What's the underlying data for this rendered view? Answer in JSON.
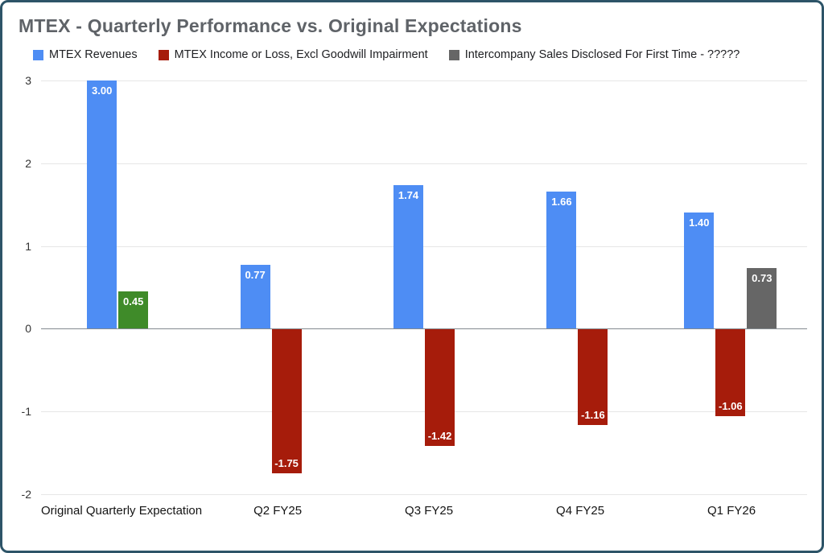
{
  "frame": {
    "border_color": "#2d5468",
    "background": "#ffffff"
  },
  "title": "MTEX - Quarterly Performance vs. Original Expectations",
  "legend": {
    "items": [
      {
        "label": "MTEX Revenues",
        "color": "#4e8df4"
      },
      {
        "label": "MTEX Income or Loss, Excl Goodwill Impairment",
        "color": "#a61c0b"
      },
      {
        "label": "Intercompany Sales Disclosed For First Time - ?????",
        "color": "#666666"
      }
    ]
  },
  "chart_data": {
    "type": "bar",
    "title": "MTEX - Quarterly Performance vs. Original Expectations",
    "categories": [
      "Original Quarterly Expectation",
      "Q2 FY25",
      "Q3 FY25",
      "Q4 FY25",
      "Q1 FY26"
    ],
    "series": [
      {
        "name": "MTEX Revenues",
        "color": "#4e8df4",
        "values": [
          3.0,
          0.77,
          1.74,
          1.66,
          1.4
        ],
        "labels": [
          "3.00",
          "0.77",
          "1.74",
          "1.66",
          "1.40"
        ]
      },
      {
        "name": "MTEX Income or Loss, Excl Goodwill Impairment",
        "color": "#a61c0b",
        "values": [
          0.45,
          -1.75,
          -1.42,
          -1.16,
          -1.06
        ],
        "labels": [
          "0.45",
          "-1.75",
          "-1.42",
          "-1.16",
          "-1.06"
        ],
        "point_colors": [
          "#3f8b29",
          null,
          null,
          null,
          null
        ]
      },
      {
        "name": "Intercompany Sales Disclosed For First Time - ?????",
        "color": "#666666",
        "values": [
          null,
          null,
          null,
          null,
          0.73
        ],
        "labels": [
          null,
          null,
          null,
          null,
          "0.73"
        ]
      }
    ],
    "ylim": [
      -2,
      3
    ],
    "yticks": [
      3,
      2,
      1,
      0,
      -1,
      -2
    ],
    "ytick_labels": [
      "3",
      "2",
      "1",
      "0",
      "-1",
      "-2"
    ],
    "grid": true,
    "legend_position": "top",
    "value_label_color": "#ffffff",
    "zero_line_color": "#848a90",
    "grid_color": "#e6e6e6"
  }
}
